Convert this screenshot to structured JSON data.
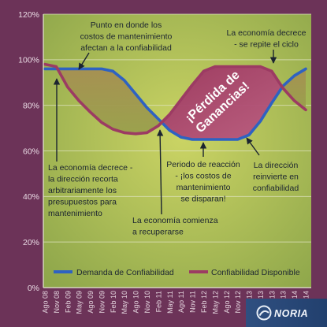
{
  "chart_data": {
    "type": "line",
    "categories": [
      "Ago 08",
      "Nov 08",
      "Feb 09",
      "May 09",
      "Ago 09",
      "Nov 09",
      "Feb 10",
      "May 10",
      "Ago 10",
      "Nov 10",
      "Feb 11",
      "May 11",
      "Ago 11",
      "Nov 11",
      "Feb 12",
      "May 12",
      "Ago 12",
      "Nov 12",
      "Feb 13",
      "May 13",
      "Ago 13",
      "Nov 13",
      "Feb 14",
      "May 14"
    ],
    "y_tick_labels": [
      "0%",
      "20%",
      "40%",
      "60%",
      "80%",
      "100%",
      "120%"
    ],
    "ylim": [
      0,
      120
    ],
    "grid": true,
    "legend_position": "bottom",
    "series": [
      {
        "name": "Demanda de Confiabilidad",
        "color": "#2e62c2",
        "values": [
          96,
          96,
          96,
          96,
          96,
          96,
          95,
          91,
          85,
          79,
          74,
          69,
          66,
          65,
          65,
          65,
          65,
          65,
          67,
          73,
          81,
          88.5,
          93,
          96
        ]
      },
      {
        "name": "Confiabilidad Disponible",
        "color": "#9c3b63",
        "values": [
          98,
          97,
          88,
          82,
          77,
          72.5,
          69.5,
          68,
          67.5,
          68,
          71,
          76,
          82.5,
          89,
          95,
          97,
          97,
          97,
          97,
          97,
          95,
          87.5,
          82,
          78
        ]
      }
    ],
    "area_colors": {
      "gap": [
        "#a68f52",
        "#99a04c"
      ],
      "loss": [
        "#9c3560",
        "#bb5a82"
      ]
    },
    "area_label": [
      "¡Pérdida de",
      "Ganancias!"
    ],
    "annotations": [
      [
        "Punto en donde los",
        "costos de mantenimiento",
        "afectan a la confiabilidad"
      ],
      [
        "La economía decrece",
        "- se repite el ciclo"
      ],
      [
        "La economía decrece -",
        "la dirección recorta",
        "arbitrariamente los",
        "presupuestos para",
        "mantenimiento"
      ],
      [
        "Periodo de reacción",
        "- ¡los costos de",
        "mantenimiento",
        "se disparan!"
      ],
      [
        "La dirección",
        "reinvierte en",
        "confiabilidad"
      ],
      [
        "La economía comienza",
        "a recuperarse"
      ]
    ]
  },
  "logo": {
    "wordmark": "NORIA",
    "icon": "noria-swirl-icon",
    "color": "#2f4f80"
  }
}
